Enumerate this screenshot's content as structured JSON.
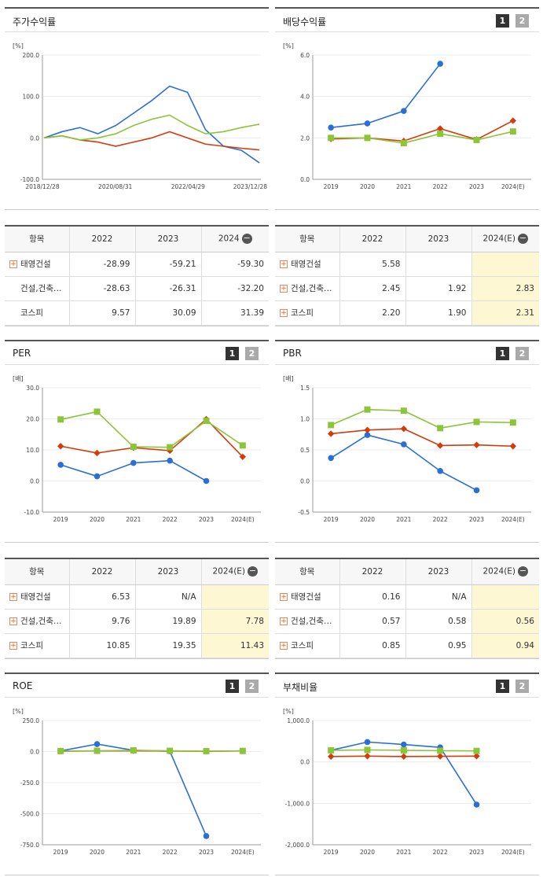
{
  "colors": {
    "s1": "#2b6fd6",
    "s2": "#d23c0d",
    "s3": "#8cc43a",
    "estimate_bg": "#fdf7d4"
  },
  "legend": {
    "s1": "태영건설",
    "s2": "건설,건축관련",
    "s3": "코스피"
  },
  "toggles": {
    "one": "1",
    "two": "2"
  },
  "panels": {
    "stock_return": {
      "title": "주가수익률",
      "unit": "[%]",
      "y_ticks": [
        "200.0",
        "100.0",
        "0.0",
        "-100.0"
      ],
      "x_ticks": [
        "2018/12/28",
        "2020/08/31",
        "2022/04/29",
        "2023/12/28"
      ]
    },
    "dividend": {
      "title": "배당수익률",
      "unit": "[%]",
      "y_ticks": [
        "6.0",
        "4.0",
        "2.0",
        "0.0"
      ]
    },
    "per": {
      "title": "PER",
      "unit": "[배]",
      "y_ticks": [
        "30.0",
        "20.0",
        "10.0",
        "0.0",
        "-10.0"
      ]
    },
    "pbr": {
      "title": "PBR",
      "unit": "[배]",
      "y_ticks": [
        "1.5",
        "1.0",
        "0.5",
        "0.0",
        "-0.5"
      ]
    },
    "roe": {
      "title": "ROE",
      "unit": "[%]",
      "y_ticks": [
        "250.0",
        "0.0",
        "-250.0",
        "-500.0",
        "-750.0"
      ]
    },
    "debt": {
      "title": "부채비율",
      "unit": "[%]",
      "y_ticks": [
        "1,000.0",
        "0.0",
        "-1,000.0",
        "-2,000.0"
      ]
    }
  },
  "year_ticks": [
    "2019",
    "2020",
    "2021",
    "2022",
    "2023",
    "2024(E)"
  ],
  "chart_data": [
    {
      "type": "line",
      "title": "주가수익률",
      "ylabel": "[%]",
      "ylim": [
        -100,
        200
      ],
      "x": [
        "2018/12/28",
        "2019/06",
        "2019/12",
        "2020/06",
        "2020/08/31",
        "2020/12",
        "2021/06",
        "2021/12",
        "2022/04/29",
        "2022/09",
        "2023/03",
        "2023/08",
        "2023/12/28"
      ],
      "series": [
        {
          "name": "태영건설",
          "values": [
            0,
            15,
            25,
            10,
            30,
            60,
            90,
            125,
            110,
            20,
            -20,
            -30,
            -60
          ]
        },
        {
          "name": "건설,건축관련",
          "values": [
            0,
            5,
            -5,
            -10,
            -20,
            -10,
            0,
            15,
            0,
            -15,
            -20,
            -25,
            -29
          ]
        },
        {
          "name": "코스피",
          "values": [
            0,
            5,
            -5,
            0,
            10,
            30,
            45,
            55,
            30,
            10,
            15,
            25,
            33
          ]
        }
      ]
    },
    {
      "type": "line",
      "title": "배당수익률",
      "ylabel": "[%]",
      "ylim": [
        0,
        6
      ],
      "categories": [
        "2019",
        "2020",
        "2021",
        "2022",
        "2023",
        "2024(E)"
      ],
      "series": [
        {
          "name": "태영건설",
          "values": [
            2.5,
            2.7,
            3.3,
            5.58,
            null,
            null
          ]
        },
        {
          "name": "건설,건축관련",
          "values": [
            1.95,
            2.0,
            1.85,
            2.45,
            1.92,
            2.83
          ]
        },
        {
          "name": "코스피",
          "values": [
            2.0,
            2.0,
            1.75,
            2.2,
            1.9,
            2.31
          ]
        }
      ]
    },
    {
      "type": "line",
      "title": "PER",
      "ylabel": "[배]",
      "ylim": [
        -10,
        30
      ],
      "categories": [
        "2019",
        "2020",
        "2021",
        "2022",
        "2023",
        "2024(E)"
      ],
      "series": [
        {
          "name": "태영건설",
          "values": [
            5.2,
            1.5,
            5.8,
            6.53,
            0,
            null
          ]
        },
        {
          "name": "건설,건축관련",
          "values": [
            11.2,
            9.0,
            10.7,
            9.76,
            19.89,
            7.78
          ]
        },
        {
          "name": "코스피",
          "values": [
            19.8,
            22.3,
            11.0,
            10.85,
            19.35,
            11.43
          ]
        }
      ]
    },
    {
      "type": "line",
      "title": "PBR",
      "ylabel": "[배]",
      "ylim": [
        -0.5,
        1.5
      ],
      "categories": [
        "2019",
        "2020",
        "2021",
        "2022",
        "2023",
        "2024(E)"
      ],
      "series": [
        {
          "name": "태영건설",
          "values": [
            0.37,
            0.74,
            0.59,
            0.16,
            -0.15,
            null
          ]
        },
        {
          "name": "건설,건축관련",
          "values": [
            0.76,
            0.82,
            0.84,
            0.57,
            0.58,
            0.56
          ]
        },
        {
          "name": "코스피",
          "values": [
            0.9,
            1.15,
            1.13,
            0.85,
            0.95,
            0.94
          ]
        }
      ]
    },
    {
      "type": "line",
      "title": "ROE",
      "ylabel": "[%]",
      "ylim": [
        -750,
        250
      ],
      "categories": [
        "2019",
        "2020",
        "2021",
        "2022",
        "2023",
        "2024(E)"
      ],
      "series": [
        {
          "name": "태영건설",
          "values": [
            5,
            60,
            10,
            3,
            -680,
            null
          ]
        },
        {
          "name": "건설,건축관련",
          "values": [
            3,
            5,
            6,
            4,
            2,
            5
          ]
        },
        {
          "name": "코스피",
          "values": [
            4,
            6,
            10,
            6,
            3,
            5
          ]
        }
      ]
    },
    {
      "type": "line",
      "title": "부채비율",
      "ylabel": "[%]",
      "ylim": [
        -2000,
        1000
      ],
      "categories": [
        "2019",
        "2020",
        "2021",
        "2022",
        "2023",
        "2024(E)"
      ],
      "series": [
        {
          "name": "태영건설",
          "values": [
            280,
            480,
            420,
            350,
            -1030,
            null
          ]
        },
        {
          "name": "건설,건축관련",
          "values": [
            130,
            140,
            130,
            135,
            140,
            null
          ]
        },
        {
          "name": "코스피",
          "values": [
            280,
            290,
            280,
            270,
            265,
            null
          ]
        }
      ]
    }
  ],
  "tables": {
    "stock_return": {
      "header": [
        "항목",
        "2022",
        "2023",
        "2024"
      ],
      "rows": [
        {
          "name": "태영건설",
          "plus": true,
          "values": [
            "-28.99",
            "-59.21",
            "-59.30"
          ]
        },
        {
          "name": "건설,건축…",
          "plus": false,
          "values": [
            "-28.63",
            "-26.31",
            "-32.20"
          ]
        },
        {
          "name": "코스피",
          "plus": false,
          "values": [
            "9.57",
            "30.09",
            "31.39"
          ]
        }
      ]
    },
    "dividend": {
      "header": [
        "항목",
        "2022",
        "2023",
        "2024(E)"
      ],
      "rows": [
        {
          "name": "태영건설",
          "plus": true,
          "values": [
            "5.58",
            "",
            ""
          ]
        },
        {
          "name": "건설,건축…",
          "plus": true,
          "values": [
            "2.45",
            "1.92",
            "2.83"
          ]
        },
        {
          "name": "코스피",
          "plus": true,
          "values": [
            "2.20",
            "1.90",
            "2.31"
          ]
        }
      ]
    },
    "per": {
      "header": [
        "항목",
        "2022",
        "2023",
        "2024(E)"
      ],
      "rows": [
        {
          "name": "태영건설",
          "plus": true,
          "values": [
            "6.53",
            "N/A",
            ""
          ]
        },
        {
          "name": "건설,건축…",
          "plus": true,
          "values": [
            "9.76",
            "19.89",
            "7.78"
          ]
        },
        {
          "name": "코스피",
          "plus": true,
          "values": [
            "10.85",
            "19.35",
            "11.43"
          ]
        }
      ]
    },
    "pbr": {
      "header": [
        "항목",
        "2022",
        "2023",
        "2024(E)"
      ],
      "rows": [
        {
          "name": "태영건설",
          "plus": true,
          "values": [
            "0.16",
            "N/A",
            ""
          ]
        },
        {
          "name": "건설,건축…",
          "plus": true,
          "values": [
            "0.57",
            "0.58",
            "0.56"
          ]
        },
        {
          "name": "코스피",
          "plus": true,
          "values": [
            "0.85",
            "0.95",
            "0.94"
          ]
        }
      ]
    }
  }
}
